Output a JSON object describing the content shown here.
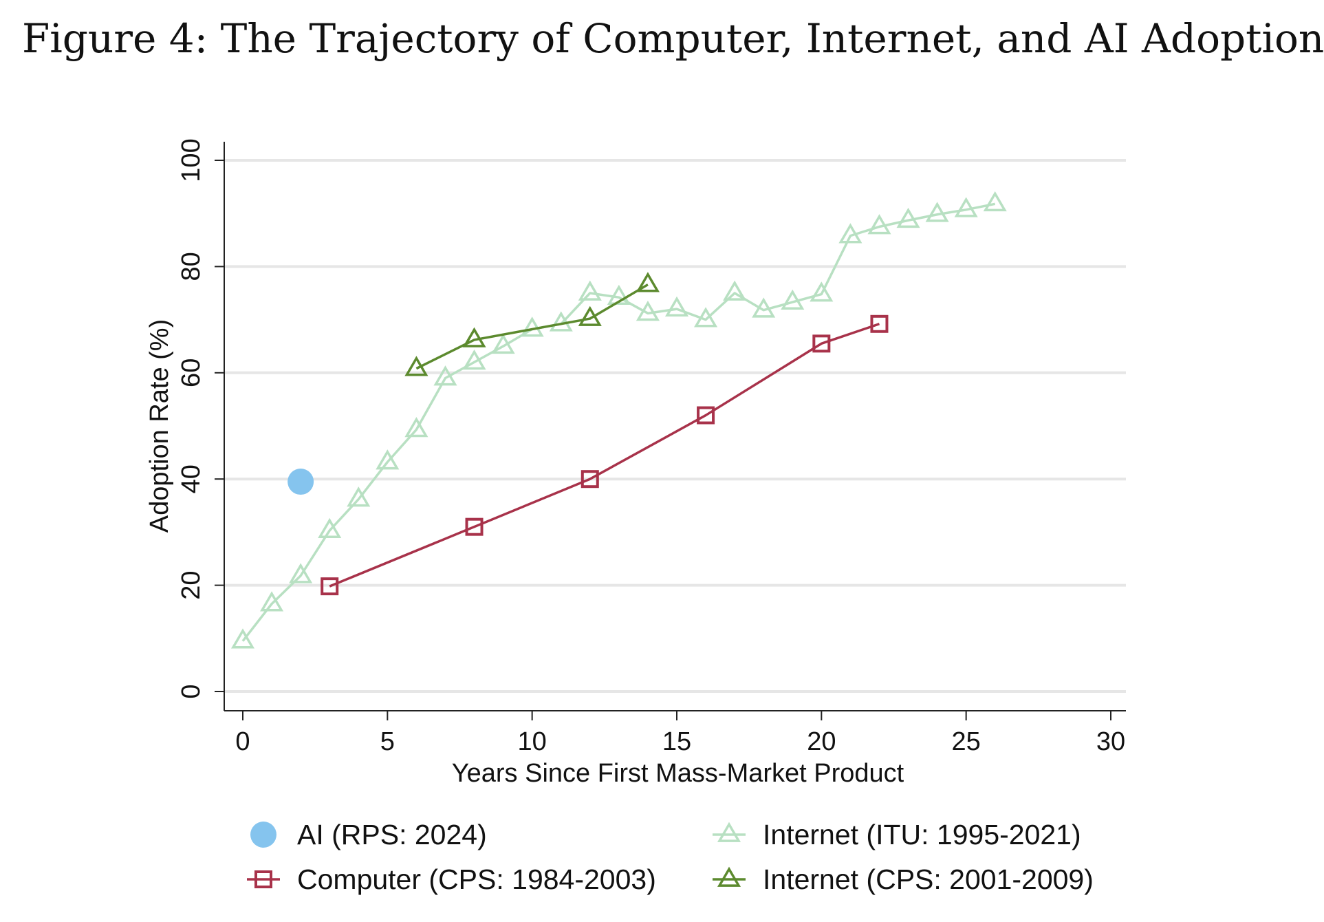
{
  "figure_title": "Figure 4: The Trajectory of Computer, Internet, and AI Adoption",
  "chart_data": {
    "type": "line",
    "xlabel": "Years Since First Mass-Market Product",
    "ylabel": "Adoption Rate  (%)",
    "xlim": [
      0,
      30
    ],
    "ylim": [
      0,
      100
    ],
    "x_ticks": [
      0,
      5,
      10,
      15,
      20,
      25,
      30
    ],
    "y_ticks": [
      0,
      20,
      40,
      60,
      80,
      100
    ],
    "grid": true,
    "legend_position": "bottom",
    "series": [
      {
        "name": "AI (RPS: 2024)",
        "marker": "circle-filled",
        "color": "#85c4ee",
        "line": false,
        "x": [
          2
        ],
        "y": [
          39.5
        ]
      },
      {
        "name": "Computer (CPS: 1984-2003)",
        "marker": "square-open",
        "color": "#a8324a",
        "line": true,
        "x": [
          3,
          8,
          12,
          16,
          20,
          22
        ],
        "y": [
          19.8,
          31,
          40,
          52,
          65.5,
          69.2
        ]
      },
      {
        "name": "Internet (ITU: 1995-2021)",
        "marker": "triangle-open",
        "color": "#b8e0c2",
        "line": true,
        "x": [
          0,
          1,
          2,
          3,
          4,
          5,
          6,
          7,
          8,
          9,
          10,
          11,
          12,
          13,
          14,
          15,
          16,
          17,
          18,
          19,
          20,
          21,
          22,
          23,
          24,
          25,
          26
        ],
        "y": [
          9.5,
          16.5,
          21.8,
          30.3,
          36.2,
          43.2,
          49.3,
          59,
          62,
          65,
          68.2,
          69.2,
          75,
          74.2,
          71.2,
          72,
          70,
          75,
          71.8,
          73.3,
          74.8,
          85.8,
          87.5,
          88.7,
          89.8,
          90.7,
          91.8
        ]
      },
      {
        "name": "Internet (CPS: 2001-2009)",
        "marker": "triangle-open",
        "color": "#5c8a2e",
        "line": true,
        "x": [
          6,
          8,
          12,
          14
        ],
        "y": [
          60.8,
          66.2,
          70.2,
          76.6
        ]
      }
    ],
    "legend_order": [
      0,
      2,
      1,
      3
    ]
  }
}
